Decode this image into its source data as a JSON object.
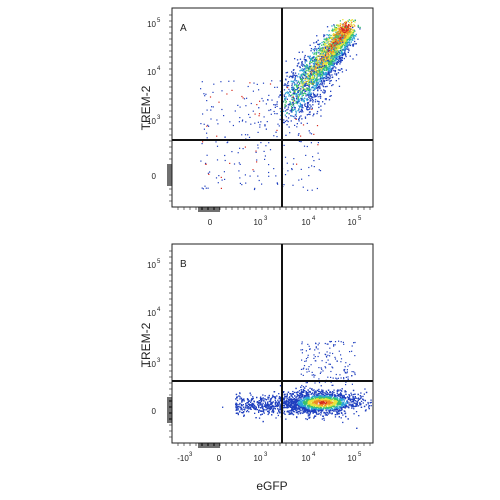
{
  "chart_data": [
    {
      "type": "scatter",
      "panel_label": "A",
      "ylabel": "TREM-2",
      "xlabel": "",
      "x_ticks": [
        "0",
        "10",
        "10",
        "10"
      ],
      "x_tick_exps": [
        "",
        "3",
        "4",
        "5"
      ],
      "y_ticks": [
        "0",
        "10",
        "10",
        "10"
      ],
      "y_tick_exps": [
        "",
        "3",
        "4",
        "5"
      ],
      "gate": {
        "x": "10^3.5",
        "y": "10^2.6"
      },
      "xlim": [
        "-10^2",
        "2x10^5"
      ],
      "ylim": [
        "-10^2",
        "2x10^5"
      ],
      "population": "diagonal TREM-2+ eGFP+ cluster rising from ~10^3.4 to ~10^4.9 on both axes",
      "density_colors": [
        "#1f3fbf",
        "#2aa3d9",
        "#39c26a",
        "#e8e33a",
        "#ef8a24",
        "#d62b1e"
      ]
    },
    {
      "type": "scatter",
      "panel_label": "B",
      "ylabel": "TREM-2",
      "xlabel": "eGFP",
      "x_ticks": [
        "-10",
        "0",
        "10",
        "10",
        "10"
      ],
      "x_tick_exps": [
        "3",
        "",
        "3",
        "4",
        "5"
      ],
      "y_ticks": [
        "0",
        "10",
        "10",
        "10"
      ],
      "y_tick_exps": [
        "",
        "3",
        "4",
        "5"
      ],
      "gate": {
        "x": "10^3.5",
        "y": "10^2.6"
      },
      "xlim": [
        "-2x10^3",
        "2x10^5"
      ],
      "ylim": [
        "-10^2",
        "2x10^5"
      ],
      "population": "horizontal eGFP+ TREM-2- cluster near TREM-2 ~0, eGFP ~10^4.3",
      "density_colors": [
        "#1f3fbf",
        "#2aa3d9",
        "#39c26a",
        "#e8e33a",
        "#ef8a24",
        "#d62b1e"
      ]
    }
  ]
}
